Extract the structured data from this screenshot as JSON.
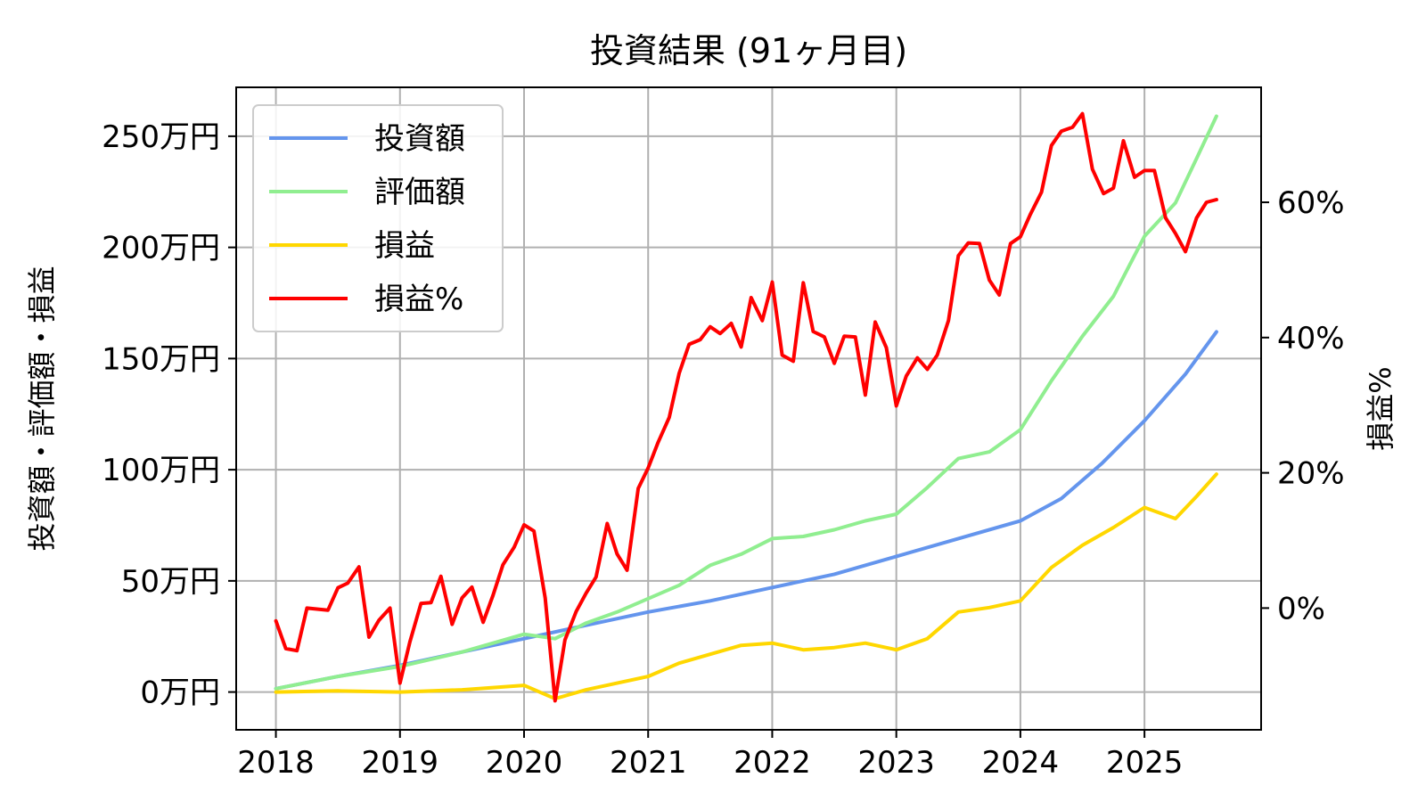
{
  "chart_data": {
    "type": "line",
    "title": "投資結果 (91ヶ月目)",
    "xlabel": "",
    "ylabel": "投資額・評価額・損益",
    "y2label": "損益%",
    "x_ticks": [
      "2018",
      "2019",
      "2020",
      "2021",
      "2022",
      "2023",
      "2024",
      "2025"
    ],
    "y_ticks": [
      "0万円",
      "50万円",
      "100万円",
      "150万円",
      "200万円",
      "250万円"
    ],
    "y_tick_values": [
      0,
      50,
      100,
      150,
      200,
      250
    ],
    "y2_ticks": [
      "0%",
      "20%",
      "40%",
      "60%"
    ],
    "y2_tick_values": [
      0,
      20,
      40,
      60
    ],
    "xlim": [
      2017.68,
      2025.94
    ],
    "ylim": [
      -17,
      272
    ],
    "y2lim": [
      -18,
      77
    ],
    "grid": true,
    "legend_position": "top-left",
    "series": [
      {
        "name": "投資額",
        "axis": "left",
        "color": "#6495ED",
        "points": [
          [
            2018.0,
            1.5
          ],
          [
            2018.5,
            7
          ],
          [
            2019.0,
            12
          ],
          [
            2019.5,
            18
          ],
          [
            2020.0,
            24
          ],
          [
            2020.5,
            30
          ],
          [
            2021.0,
            36
          ],
          [
            2021.5,
            41
          ],
          [
            2022.0,
            47
          ],
          [
            2022.5,
            53
          ],
          [
            2023.0,
            61
          ],
          [
            2023.5,
            69
          ],
          [
            2024.0,
            77
          ],
          [
            2024.33,
            87
          ],
          [
            2024.66,
            103
          ],
          [
            2025.0,
            122
          ],
          [
            2025.33,
            143
          ],
          [
            2025.58,
            162
          ]
        ]
      },
      {
        "name": "評価額",
        "axis": "left",
        "color": "#90EE90",
        "points": [
          [
            2018.0,
            1.5
          ],
          [
            2018.5,
            7
          ],
          [
            2019.0,
            11.5
          ],
          [
            2019.5,
            18
          ],
          [
            2020.0,
            26
          ],
          [
            2020.25,
            24
          ],
          [
            2020.5,
            31
          ],
          [
            2020.75,
            36
          ],
          [
            2021.0,
            42
          ],
          [
            2021.25,
            48
          ],
          [
            2021.5,
            57
          ],
          [
            2021.75,
            62
          ],
          [
            2022.0,
            69
          ],
          [
            2022.25,
            70
          ],
          [
            2022.5,
            73
          ],
          [
            2022.75,
            77
          ],
          [
            2023.0,
            80
          ],
          [
            2023.25,
            92
          ],
          [
            2023.5,
            105
          ],
          [
            2023.75,
            108
          ],
          [
            2024.0,
            118
          ],
          [
            2024.25,
            140
          ],
          [
            2024.5,
            160
          ],
          [
            2024.75,
            178
          ],
          [
            2025.0,
            205
          ],
          [
            2025.25,
            220
          ],
          [
            2025.42,
            240
          ],
          [
            2025.58,
            259
          ]
        ]
      },
      {
        "name": "損益",
        "axis": "left",
        "color": "#FFD700",
        "points": [
          [
            2018.0,
            0
          ],
          [
            2018.5,
            0.5
          ],
          [
            2019.0,
            0
          ],
          [
            2019.5,
            1
          ],
          [
            2020.0,
            3
          ],
          [
            2020.25,
            -3
          ],
          [
            2020.5,
            1
          ],
          [
            2020.75,
            4
          ],
          [
            2021.0,
            7
          ],
          [
            2021.25,
            13
          ],
          [
            2021.5,
            17
          ],
          [
            2021.75,
            21
          ],
          [
            2022.0,
            22
          ],
          [
            2022.25,
            19
          ],
          [
            2022.5,
            20
          ],
          [
            2022.75,
            22
          ],
          [
            2023.0,
            19
          ],
          [
            2023.25,
            24
          ],
          [
            2023.5,
            36
          ],
          [
            2023.75,
            38
          ],
          [
            2024.0,
            41
          ],
          [
            2024.25,
            56
          ],
          [
            2024.5,
            66
          ],
          [
            2024.75,
            74
          ],
          [
            2025.0,
            83
          ],
          [
            2025.25,
            78
          ],
          [
            2025.42,
            88
          ],
          [
            2025.58,
            98
          ]
        ]
      },
      {
        "name": "損益%",
        "axis": "right",
        "color": "#FF0000",
        "points": [
          [
            2018.0,
            -1.9
          ],
          [
            2018.08,
            -6
          ],
          [
            2018.17,
            -6.3
          ],
          [
            2018.25,
            0
          ],
          [
            2018.42,
            -0.3
          ],
          [
            2018.5,
            3
          ],
          [
            2018.58,
            3.7
          ],
          [
            2018.67,
            6.1
          ],
          [
            2018.75,
            -4.3
          ],
          [
            2018.83,
            -1.8
          ],
          [
            2018.92,
            0
          ],
          [
            2019.0,
            -11.1
          ],
          [
            2019.08,
            -5
          ],
          [
            2019.17,
            0.7
          ],
          [
            2019.25,
            0.8
          ],
          [
            2019.33,
            4.7
          ],
          [
            2019.42,
            -2.4
          ],
          [
            2019.5,
            1.5
          ],
          [
            2019.58,
            3.1
          ],
          [
            2019.67,
            -2.1
          ],
          [
            2019.75,
            1.9
          ],
          [
            2019.83,
            6.4
          ],
          [
            2019.92,
            9
          ],
          [
            2020.0,
            12.3
          ],
          [
            2020.08,
            11.4
          ],
          [
            2020.17,
            1.5
          ],
          [
            2020.25,
            -13.7
          ],
          [
            2020.33,
            -4.7
          ],
          [
            2020.42,
            -0.5
          ],
          [
            2020.5,
            2.2
          ],
          [
            2020.58,
            4.6
          ],
          [
            2020.67,
            12.5
          ],
          [
            2020.75,
            8
          ],
          [
            2020.83,
            5.6
          ],
          [
            2020.92,
            17.7
          ],
          [
            2021.0,
            20.7
          ],
          [
            2021.08,
            24.5
          ],
          [
            2021.17,
            28.2
          ],
          [
            2021.25,
            34.7
          ],
          [
            2021.33,
            39
          ],
          [
            2021.42,
            39.7
          ],
          [
            2021.5,
            41.6
          ],
          [
            2021.58,
            40.6
          ],
          [
            2021.67,
            42.1
          ],
          [
            2021.75,
            38.6
          ],
          [
            2021.83,
            45.9
          ],
          [
            2021.92,
            42.5
          ],
          [
            2022.0,
            48.2
          ],
          [
            2022.08,
            37.4
          ],
          [
            2022.17,
            36.5
          ],
          [
            2022.25,
            48.1
          ],
          [
            2022.33,
            40.9
          ],
          [
            2022.42,
            40.1
          ],
          [
            2022.5,
            36.2
          ],
          [
            2022.58,
            40.2
          ],
          [
            2022.67,
            40.1
          ],
          [
            2022.75,
            31.5
          ],
          [
            2022.83,
            42.3
          ],
          [
            2022.92,
            38.5
          ],
          [
            2023.0,
            29.9
          ],
          [
            2023.08,
            34.3
          ],
          [
            2023.17,
            37
          ],
          [
            2023.25,
            35.3
          ],
          [
            2023.33,
            37.4
          ],
          [
            2023.42,
            42.5
          ],
          [
            2023.5,
            52.1
          ],
          [
            2023.58,
            54
          ],
          [
            2023.67,
            53.9
          ],
          [
            2023.75,
            48.5
          ],
          [
            2023.83,
            46.3
          ],
          [
            2023.92,
            53.9
          ],
          [
            2024.0,
            54.9
          ],
          [
            2024.08,
            58.2
          ],
          [
            2024.17,
            61.5
          ],
          [
            2024.25,
            68.4
          ],
          [
            2024.33,
            70.5
          ],
          [
            2024.42,
            71.1
          ],
          [
            2024.5,
            73.1
          ],
          [
            2024.58,
            64.9
          ],
          [
            2024.67,
            61.3
          ],
          [
            2024.75,
            62.1
          ],
          [
            2024.83,
            69.1
          ],
          [
            2024.92,
            63.7
          ],
          [
            2025.0,
            64.7
          ],
          [
            2025.08,
            64.7
          ],
          [
            2025.17,
            57.7
          ],
          [
            2025.25,
            55.4
          ],
          [
            2025.33,
            52.7
          ],
          [
            2025.42,
            57.7
          ],
          [
            2025.5,
            60
          ],
          [
            2025.58,
            60.4
          ]
        ]
      }
    ]
  }
}
